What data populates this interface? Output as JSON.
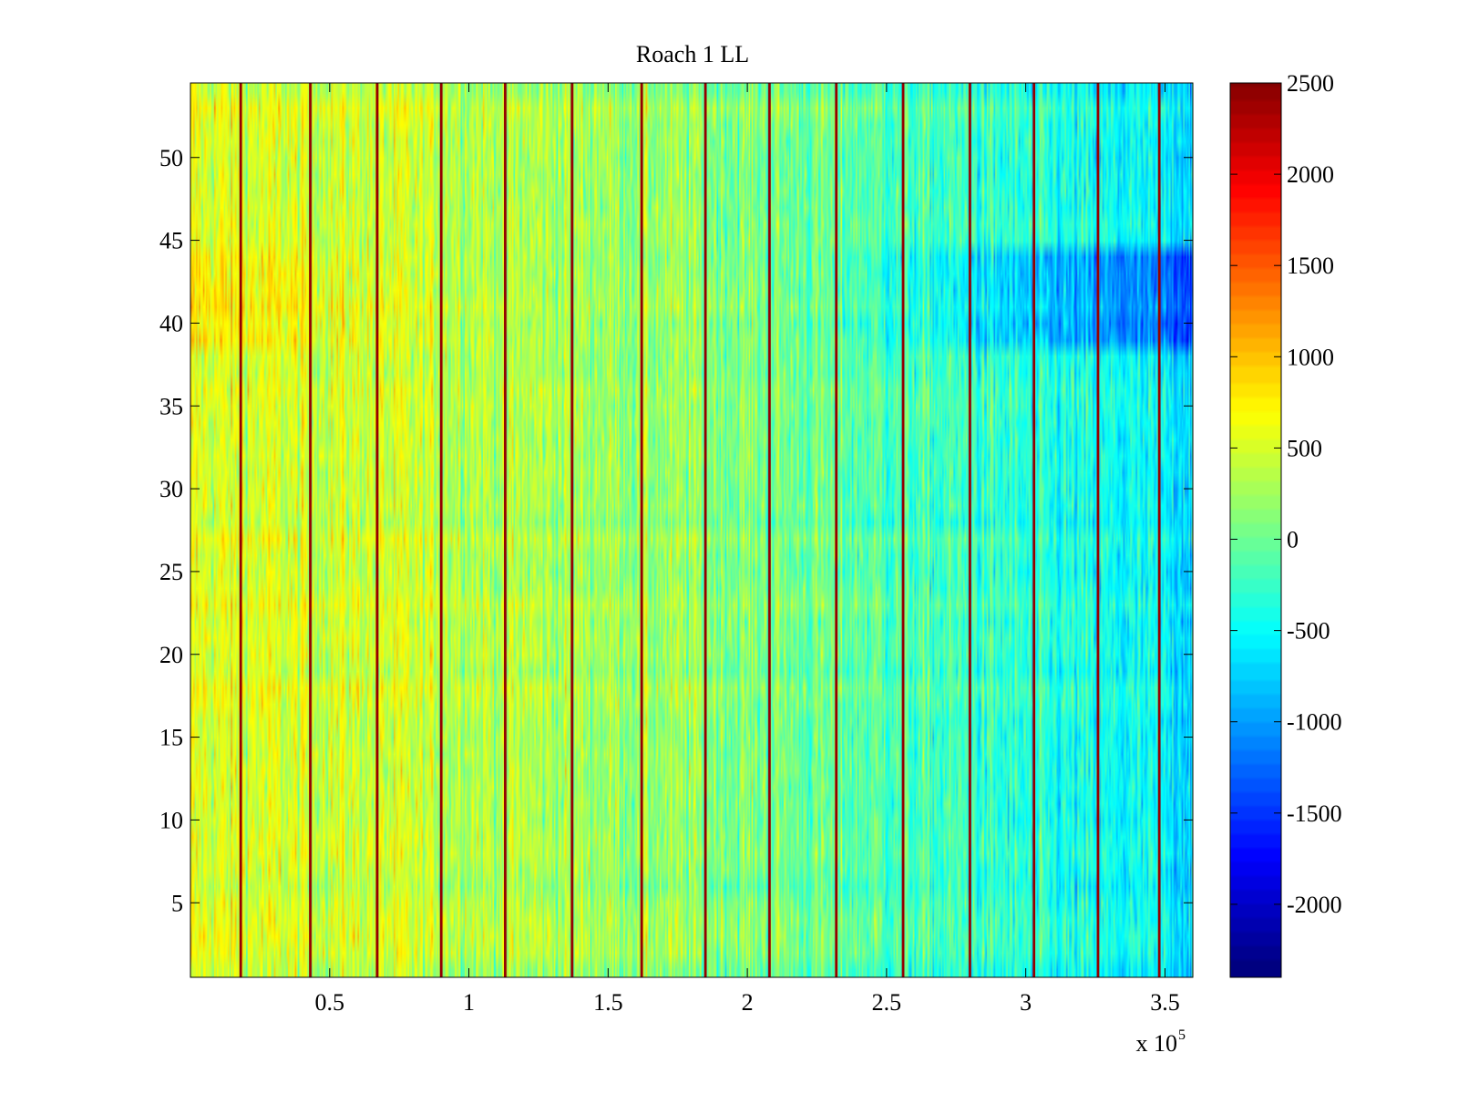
{
  "chart_data": {
    "type": "heatmap",
    "title": "Roach 1 LL",
    "xlabel": "",
    "ylabel": "",
    "xlim": [
      0,
      360000
    ],
    "ylim": [
      0.5,
      54.5
    ],
    "rows": 54,
    "colormap": "jet",
    "x_ticks": [
      {
        "value": 50000,
        "label": "0.5"
      },
      {
        "value": 100000,
        "label": "1"
      },
      {
        "value": 150000,
        "label": "1.5"
      },
      {
        "value": 200000,
        "label": "2"
      },
      {
        "value": 250000,
        "label": "2.5"
      },
      {
        "value": 300000,
        "label": "3"
      },
      {
        "value": 350000,
        "label": "3.5"
      }
    ],
    "x_multiplier": {
      "base": "x 10",
      "exponent": "5"
    },
    "y_ticks": [
      {
        "value": 5,
        "label": "5"
      },
      {
        "value": 10,
        "label": "10"
      },
      {
        "value": 15,
        "label": "15"
      },
      {
        "value": 20,
        "label": "20"
      },
      {
        "value": 25,
        "label": "25"
      },
      {
        "value": 30,
        "label": "30"
      },
      {
        "value": 35,
        "label": "35"
      },
      {
        "value": 40,
        "label": "40"
      },
      {
        "value": 45,
        "label": "45"
      },
      {
        "value": 50,
        "label": "50"
      }
    ],
    "colorbar": {
      "range": [
        -2400,
        2500
      ],
      "ticks": [
        {
          "value": 2500,
          "label": "2500"
        },
        {
          "value": 2000,
          "label": "2000"
        },
        {
          "value": 1500,
          "label": "1500"
        },
        {
          "value": 1000,
          "label": "1000"
        },
        {
          "value": 500,
          "label": "500"
        },
        {
          "value": 0,
          "label": "0"
        },
        {
          "value": -500,
          "label": "-500"
        },
        {
          "value": -1000,
          "label": "-1000"
        },
        {
          "value": -1500,
          "label": "-1500"
        },
        {
          "value": -2000,
          "label": "-2000"
        }
      ]
    },
    "spike_columns_x": [
      18000,
      43000,
      67000,
      90000,
      113000,
      137000,
      162000,
      185000,
      208000,
      232000,
      256000,
      280000,
      303000,
      326000,
      348000
    ],
    "spike_value": 2400,
    "approximate_trend": {
      "x_points": [
        0,
        60000,
        120000,
        180000,
        240000,
        300000,
        360000
      ],
      "mean_value_points": [
        500,
        450,
        300,
        150,
        -100,
        -400,
        -650
      ],
      "low_band_rows": [
        39,
        44
      ],
      "low_band_offset": -700,
      "note": "values estimated visually from the colour field"
    }
  }
}
